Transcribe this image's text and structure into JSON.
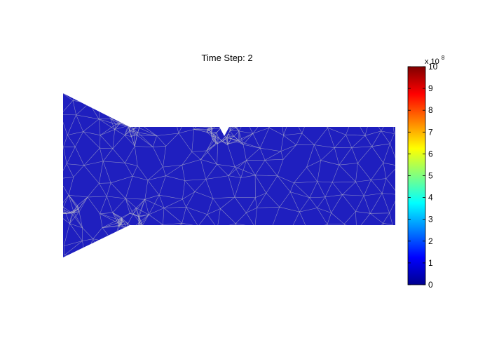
{
  "chart_data": {
    "type": "heatmap",
    "title": "Time Step: 2",
    "field_value": 0,
    "colorbar": {
      "min": 0,
      "max": 10,
      "ticks": [
        "0",
        "1",
        "2",
        "3",
        "4",
        "5",
        "6",
        "7",
        "8",
        "9",
        "10"
      ],
      "multiplier_base": "x 10",
      "multiplier_exponent": "8",
      "colormap": [
        "#00008f",
        "#0000ff",
        "#0080ff",
        "#00ffff",
        "#80ff80",
        "#ffff00",
        "#ff8000",
        "#ff0000",
        "#800000"
      ]
    },
    "mesh_color": "#b4b4c8",
    "field_color": "#1f1fbf"
  }
}
